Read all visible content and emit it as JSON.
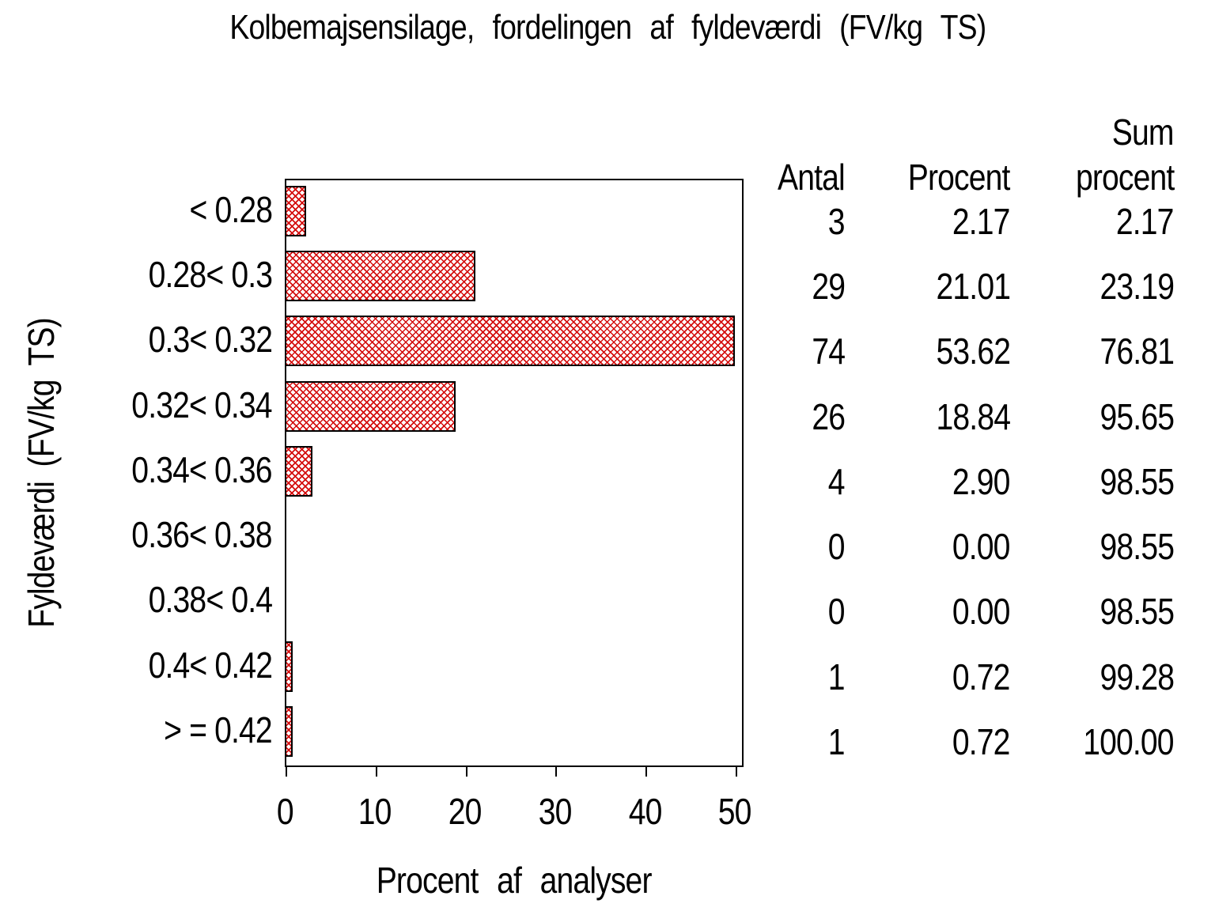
{
  "chart_data": {
    "type": "bar",
    "orientation": "horizontal",
    "title": "Kolbemajsensilage, fordelingen af fyldeværdi (FV/kg TS)",
    "xlabel": "Procent af analyser",
    "ylabel": "Fyldeværdi (FV/kg TS)",
    "categories": [
      "< 0.28",
      "0.28< 0.3",
      "0.3< 0.32",
      "0.32< 0.34",
      "0.34< 0.36",
      "0.36< 0.38",
      "0.38< 0.4",
      "0.4< 0.42",
      "> = 0.42"
    ],
    "values": [
      2.17,
      21.01,
      53.62,
      18.84,
      2.9,
      0.0,
      0.0,
      0.72,
      0.72
    ],
    "x_ticks": [
      0,
      10,
      20,
      30,
      40,
      50
    ],
    "xlim": [
      0,
      50.6
    ],
    "grid": false,
    "legend": "none",
    "bar_fill_style": "red-crosshatch",
    "bar_hatch_color": "#d40d0d",
    "bar_border_color": "#000000",
    "background_color": "#ffffff",
    "text_color": "#000000"
  },
  "table": {
    "headers": {
      "antal": "Antal",
      "procent": "Procent",
      "sum_line1": "Sum",
      "sum_line2": "procent"
    },
    "rows": [
      {
        "antal": "3",
        "procent": "2.17",
        "sum": "2.17"
      },
      {
        "antal": "29",
        "procent": "21.01",
        "sum": "23.19"
      },
      {
        "antal": "74",
        "procent": "53.62",
        "sum": "76.81"
      },
      {
        "antal": "26",
        "procent": "18.84",
        "sum": "95.65"
      },
      {
        "antal": "4",
        "procent": "2.90",
        "sum": "98.55"
      },
      {
        "antal": "0",
        "procent": "0.00",
        "sum": "98.55"
      },
      {
        "antal": "0",
        "procent": "0.00",
        "sum": "98.55"
      },
      {
        "antal": "1",
        "procent": "0.72",
        "sum": "99.28"
      },
      {
        "antal": "1",
        "procent": "0.72",
        "sum": "100.00"
      }
    ]
  }
}
